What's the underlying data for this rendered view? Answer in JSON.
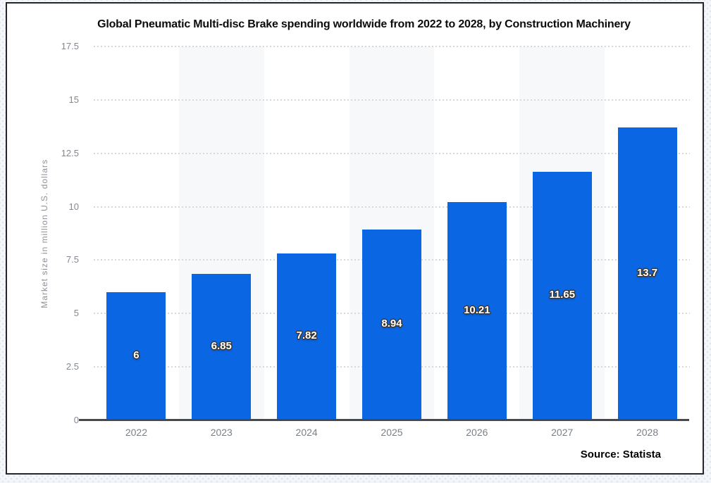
{
  "header": {
    "title": "Global Pneumatic Multi-disc Brake spending worldwide from 2022 to 2028, by Construction Machinery"
  },
  "chart_data": {
    "type": "bar",
    "title": "Global Pneumatic Multi-disc Brake spending worldwide from 2022 to 2028, by Construction Machinery",
    "categories": [
      "2022",
      "2023",
      "2024",
      "2025",
      "2026",
      "2027",
      "2028"
    ],
    "values": [
      6,
      6.85,
      7.82,
      8.94,
      10.21,
      11.65,
      13.7
    ],
    "value_labels": [
      "6",
      "6.85",
      "7.82",
      "8.94",
      "10.21",
      "11.65",
      "13.7"
    ],
    "xlabel": "",
    "ylabel": "Market size in million U.S. dollars",
    "ylim": [
      0,
      17.5
    ],
    "yticks": [
      0,
      2.5,
      5,
      7.5,
      10,
      12.5,
      15,
      17.5
    ],
    "ytick_labels": [
      "0",
      "2.5",
      "5",
      "7.5",
      "10",
      "12.5",
      "15",
      "17.5"
    ],
    "grid": "horizontal-dotted",
    "legend": "none",
    "striped_category_indices": [
      1,
      3,
      5
    ],
    "style": {
      "bar_color": "#0b66e4",
      "stripe_color": "#f7f8f9",
      "gridline_color": "#d8d8d8",
      "axis_line_color": "#45484d",
      "tick_label_color": "#83888f",
      "value_label_color": "#ffffff",
      "value_label_outline": "#3c352c"
    }
  },
  "footer": {
    "source": "Source: Statista"
  }
}
